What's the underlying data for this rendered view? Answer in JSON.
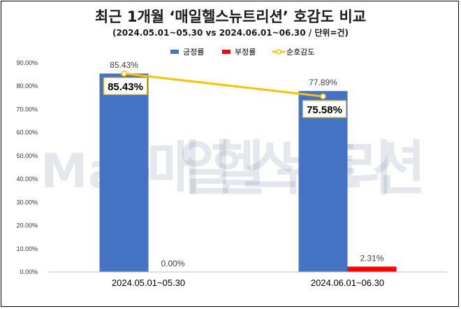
{
  "chart_data": {
    "type": "bar",
    "title": "최근 1개월 ‘매일헬스뉴트리션’ 호감도 비교",
    "subtitle": "(2024.05.01~05.30 vs 2024.06.01~06.30 / 단위=건)",
    "categories": [
      "2024.05.01~05.30",
      "2024.06.01~06.30"
    ],
    "series": [
      {
        "name": "긍정률",
        "type": "bar",
        "color": "#4472C4",
        "values": [
          85.43,
          77.89
        ],
        "labels": [
          "85.43%",
          "77.89%"
        ]
      },
      {
        "name": "부정률",
        "type": "bar",
        "color": "#FF0000",
        "values": [
          0.0,
          2.31
        ],
        "labels": [
          "0.00%",
          "2.31%"
        ]
      },
      {
        "name": "순호감도",
        "type": "line",
        "color": "#FFC000",
        "values": [
          85.43,
          75.58
        ],
        "labels": [
          "85.43%",
          "75.58%"
        ]
      }
    ],
    "ylim": [
      0,
      90
    ],
    "yticks": [
      "0.00%",
      "10.00%",
      "20.00%",
      "30.00%",
      "40.00%",
      "50.00%",
      "60.00%",
      "70.00%",
      "80.00%",
      "90.00%"
    ],
    "grid": false,
    "legend_position": "top-right"
  },
  "watermark": {
    "text": "매일헬스뉴트리션",
    "prefix": "Mae"
  }
}
